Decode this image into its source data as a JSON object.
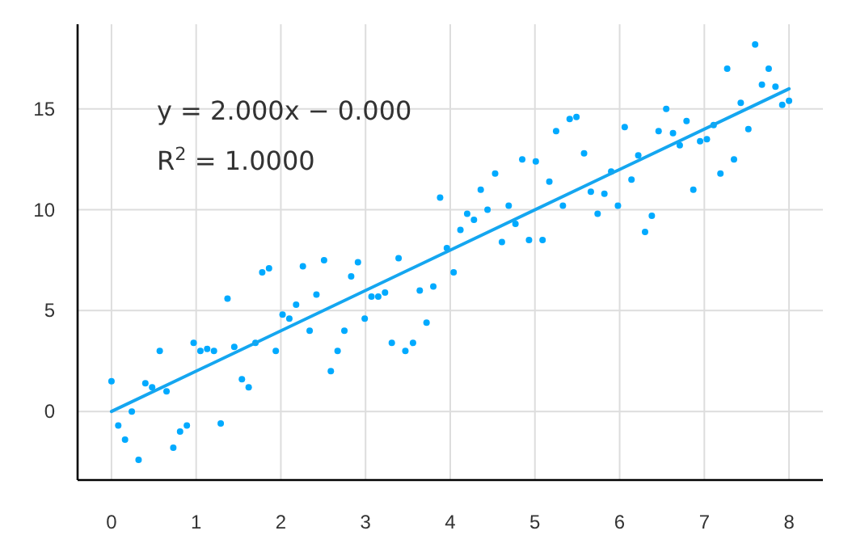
{
  "chart_data": {
    "type": "scatter",
    "annotations": [
      "y = 2.000x − 0.000",
      "R$^{2}$ = 1.0000"
    ],
    "x": [
      0,
      0.08,
      0.16,
      0.24,
      0.32,
      0.4,
      0.48,
      0.57,
      0.65,
      0.73,
      0.81,
      0.89,
      0.97,
      1.05,
      1.13,
      1.21,
      1.29,
      1.37,
      1.45,
      1.54,
      1.62,
      1.7,
      1.78,
      1.86,
      1.94,
      2.02,
      2.1,
      2.18,
      2.26,
      2.34,
      2.42,
      2.51,
      2.59,
      2.67,
      2.75,
      2.83,
      2.91,
      2.99,
      3.07,
      3.15,
      3.23,
      3.31,
      3.39,
      3.47,
      3.56,
      3.64,
      3.72,
      3.8,
      3.88,
      3.96,
      4.04,
      4.12,
      4.2,
      4.28,
      4.36,
      4.44,
      4.53,
      4.61,
      4.69,
      4.77,
      4.85,
      4.93,
      5.01,
      5.09,
      5.17,
      5.25,
      5.33,
      5.41,
      5.49,
      5.58,
      5.66,
      5.74,
      5.82,
      5.9,
      5.98,
      6.06,
      6.14,
      6.22,
      6.3,
      6.38,
      6.46,
      6.55,
      6.63,
      6.71,
      6.79,
      6.87,
      6.95,
      7.03,
      7.11,
      7.19,
      7.27,
      7.35,
      7.43,
      7.52,
      7.6,
      7.68,
      7.76,
      7.84,
      7.92,
      8.0
    ],
    "series": [
      {
        "color": "#00aaff",
        "marker": "circle",
        "values": [
          1.5,
          -0.7,
          -1.4,
          0,
          -2.4,
          1.4,
          1.2,
          3.0,
          1.0,
          -1.8,
          -1.0,
          -0.7,
          3.4,
          3.0,
          3.1,
          3.0,
          -0.6,
          5.6,
          3.2,
          1.6,
          1.2,
          3.4,
          6.9,
          7.1,
          3.0,
          4.8,
          4.6,
          5.3,
          7.2,
          4.0,
          5.8,
          7.5,
          2.0,
          3.0,
          4.0,
          6.7,
          7.4,
          4.6,
          5.7,
          5.7,
          5.9,
          3.4,
          7.6,
          3.0,
          3.4,
          6.0,
          4.4,
          6.2,
          10.6,
          8.1,
          6.9,
          9.0,
          9.8,
          9.5,
          11.0,
          10.0,
          11.8,
          8.4,
          10.2,
          9.3,
          12.5,
          8.5,
          12.4,
          8.5,
          11.4,
          13.9,
          10.2,
          14.5,
          14.6,
          12.8,
          10.9,
          9.8,
          10.8,
          11.9,
          10.2,
          14.1,
          11.5,
          12.7,
          8.9,
          9.7,
          13.9,
          15.0,
          13.8,
          13.2,
          14.4,
          11.0,
          13.4,
          13.5,
          14.2,
          11.8,
          17.0,
          12.5,
          15.3,
          14.0,
          18.2,
          16.2,
          17.0,
          16.1,
          15.2,
          15.4
        ]
      },
      {
        "type": "line",
        "color": "#14a6f0",
        "x": [
          0,
          8
        ],
        "values": [
          0,
          16
        ],
        "line_style": "solid"
      }
    ],
    "xlim": [
      -0.4,
      8.4
    ],
    "ylim": [
      -3.4,
      19.2
    ],
    "xticks": [
      0,
      1,
      2,
      3,
      4,
      5,
      6,
      7,
      8
    ],
    "yticks": [
      0,
      5,
      10,
      15
    ],
    "grid": true
  }
}
